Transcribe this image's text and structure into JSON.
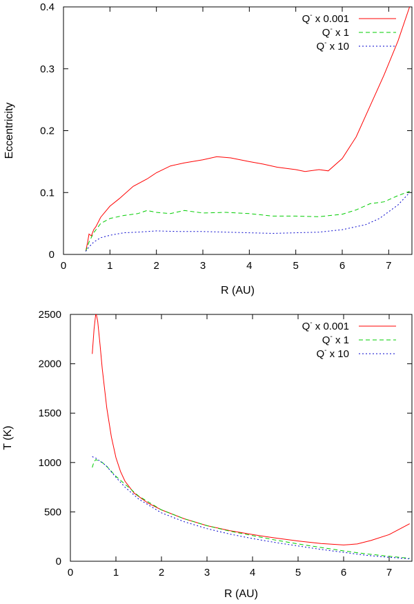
{
  "chart_data": [
    {
      "type": "line",
      "title": "",
      "xlabel": "R (AU)",
      "ylabel": "Eccentricity",
      "xlim": [
        0,
        7.5
      ],
      "ylim": [
        0,
        0.4
      ],
      "xticks": [
        0,
        1,
        2,
        3,
        4,
        5,
        6,
        7
      ],
      "yticks": [
        0,
        0.1,
        0.2,
        0.3,
        0.4
      ],
      "legend_position": "top-right",
      "series": [
        {
          "name": "Q- x 0.001",
          "label_main": "Q",
          "label_sup": "-",
          "label_rest": " x 0.001",
          "color": "#ff0000",
          "dash": "solid",
          "x": [
            0.48,
            0.52,
            0.55,
            0.6,
            0.65,
            0.7,
            0.8,
            1.0,
            1.2,
            1.5,
            1.8,
            2.0,
            2.3,
            2.6,
            3.0,
            3.3,
            3.6,
            4.0,
            4.3,
            4.6,
            5.0,
            5.2,
            5.5,
            5.7,
            6.0,
            6.3,
            6.6,
            6.9,
            7.2,
            7.45
          ],
          "y": [
            0.005,
            0.02,
            0.033,
            0.03,
            0.04,
            0.045,
            0.06,
            0.078,
            0.09,
            0.11,
            0.122,
            0.132,
            0.143,
            0.148,
            0.153,
            0.158,
            0.156,
            0.15,
            0.146,
            0.141,
            0.137,
            0.134,
            0.137,
            0.135,
            0.155,
            0.19,
            0.24,
            0.29,
            0.345,
            0.4
          ]
        },
        {
          "name": "Q- x 1",
          "label_main": "Q",
          "label_sup": "-",
          "label_rest": " x 1",
          "color": "#00cc00",
          "dash": "dashed",
          "x": [
            0.48,
            0.55,
            0.65,
            0.8,
            1.0,
            1.3,
            1.6,
            1.8,
            2.0,
            2.3,
            2.6,
            3.0,
            3.5,
            4.0,
            4.5,
            5.0,
            5.5,
            6.0,
            6.3,
            6.6,
            6.9,
            7.2,
            7.45
          ],
          "y": [
            0.005,
            0.02,
            0.035,
            0.05,
            0.058,
            0.063,
            0.066,
            0.071,
            0.068,
            0.066,
            0.071,
            0.067,
            0.068,
            0.066,
            0.062,
            0.062,
            0.061,
            0.065,
            0.072,
            0.082,
            0.085,
            0.095,
            0.102
          ]
        },
        {
          "name": "Q- x 10",
          "label_main": "Q",
          "label_sup": "-",
          "label_rest": " x 10",
          "color": "#0000cc",
          "dash": "dotted",
          "x": [
            0.48,
            0.55,
            0.65,
            0.8,
            1.0,
            1.3,
            1.6,
            2.0,
            2.5,
            3.0,
            3.5,
            4.0,
            4.5,
            5.0,
            5.5,
            6.0,
            6.5,
            6.8,
            7.2,
            7.45
          ],
          "y": [
            0.005,
            0.012,
            0.02,
            0.027,
            0.031,
            0.035,
            0.036,
            0.038,
            0.037,
            0.037,
            0.036,
            0.035,
            0.034,
            0.035,
            0.036,
            0.04,
            0.048,
            0.058,
            0.08,
            0.1
          ]
        }
      ]
    },
    {
      "type": "line",
      "title": "",
      "xlabel": "R (AU)",
      "ylabel": "T (K)",
      "xlim": [
        0,
        7.5
      ],
      "ylim": [
        0,
        2500
      ],
      "xticks": [
        0,
        1,
        2,
        3,
        4,
        5,
        6,
        7
      ],
      "yticks": [
        0,
        500,
        1000,
        1500,
        2000,
        2500
      ],
      "legend_position": "top-right",
      "series": [
        {
          "name": "Q- x 0.001",
          "label_main": "Q",
          "label_sup": "-",
          "label_rest": " x 0.001",
          "color": "#ff0000",
          "dash": "solid",
          "x": [
            0.48,
            0.52,
            0.56,
            0.6,
            0.65,
            0.7,
            0.8,
            0.9,
            1.0,
            1.1,
            1.2,
            1.4,
            1.7,
            2.0,
            2.5,
            3.0,
            3.5,
            4.0,
            4.5,
            5.0,
            5.5,
            6.0,
            6.3,
            6.6,
            7.0,
            7.45
          ],
          "y": [
            2100,
            2350,
            2520,
            2430,
            2200,
            1950,
            1550,
            1260,
            1050,
            910,
            810,
            690,
            590,
            520,
            430,
            360,
            310,
            270,
            235,
            205,
            180,
            165,
            175,
            210,
            270,
            380
          ]
        },
        {
          "name": "Q- x 1",
          "label_main": "Q",
          "label_sup": "-",
          "label_rest": " x 1",
          "color": "#00cc00",
          "dash": "dashed",
          "x": [
            0.48,
            0.52,
            0.56,
            0.6,
            0.7,
            0.8,
            1.0,
            1.2,
            1.5,
            2.0,
            2.5,
            3.0,
            3.5,
            4.0,
            4.5,
            5.0,
            5.5,
            6.0,
            6.5,
            7.0,
            7.45
          ],
          "y": [
            950,
            1010,
            1030,
            1020,
            1000,
            960,
            860,
            780,
            660,
            520,
            430,
            360,
            305,
            260,
            215,
            175,
            140,
            105,
            75,
            50,
            30
          ]
        },
        {
          "name": "Q- x 10",
          "label_main": "Q",
          "label_sup": "-",
          "label_rest": " x 10",
          "color": "#0000cc",
          "dash": "dotted",
          "x": [
            0.48,
            0.52,
            0.56,
            0.6,
            0.7,
            0.8,
            1.0,
            1.2,
            1.5,
            2.0,
            2.5,
            3.0,
            3.5,
            4.0,
            4.5,
            5.0,
            5.5,
            6.0,
            6.5,
            7.0,
            7.45
          ],
          "y": [
            1060,
            1050,
            1045,
            1030,
            1000,
            960,
            850,
            750,
            630,
            490,
            400,
            330,
            275,
            230,
            190,
            155,
            120,
            90,
            60,
            40,
            25
          ]
        }
      ]
    }
  ]
}
